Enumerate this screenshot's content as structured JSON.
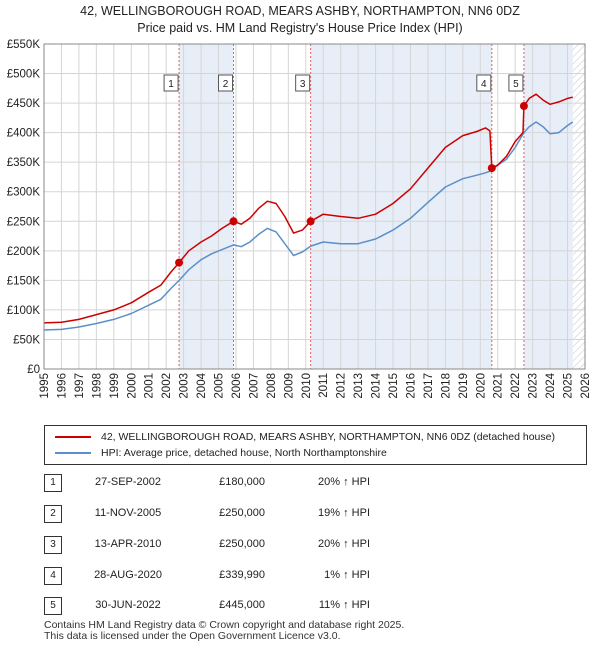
{
  "title_line1": "42, WELLINGBOROUGH ROAD, MEARS ASHBY, NORTHAMPTON, NN6 0DZ",
  "title_line2": "Price paid vs. HM Land Registry's House Price Index (HPI)",
  "colors": {
    "property": "#cc0000",
    "hpi": "#5b8fc9",
    "shade": "#e8eef8",
    "grid": "#d5d5d5"
  },
  "chart_data": {
    "type": "line",
    "xlim": [
      1995,
      2026
    ],
    "ylim": [
      0,
      550000
    ],
    "x_ticks": [
      "1995",
      "1996",
      "1997",
      "1998",
      "1999",
      "2000",
      "2001",
      "2002",
      "2003",
      "2004",
      "2005",
      "2006",
      "2007",
      "2008",
      "2009",
      "2010",
      "2011",
      "2012",
      "2013",
      "2014",
      "2015",
      "2016",
      "2017",
      "2018",
      "2019",
      "2020",
      "2021",
      "2022",
      "2023",
      "2024",
      "2025",
      "2026"
    ],
    "y_ticks": [
      {
        "value": 0,
        "label": "£0"
      },
      {
        "value": 50000,
        "label": "£50K"
      },
      {
        "value": 100000,
        "label": "£100K"
      },
      {
        "value": 150000,
        "label": "£150K"
      },
      {
        "value": 200000,
        "label": "£200K"
      },
      {
        "value": 250000,
        "label": "£250K"
      },
      {
        "value": 300000,
        "label": "£300K"
      },
      {
        "value": 350000,
        "label": "£350K"
      },
      {
        "value": 400000,
        "label": "£400K"
      },
      {
        "value": 450000,
        "label": "£450K"
      },
      {
        "value": 500000,
        "label": "£500K"
      },
      {
        "value": 550000,
        "label": "£550K"
      }
    ],
    "grid": true,
    "hatch_from": 2025.3,
    "shaded_spans": [
      [
        2002.74,
        2005.86
      ],
      [
        2010.28,
        2020.66
      ],
      [
        2022.5,
        2025.3
      ]
    ],
    "series": [
      {
        "name": "42, WELLINGBOROUGH ROAD, MEARS ASHBY, NORTHAMPTON, NN6 0DZ (detached house)",
        "color": "#cc0000",
        "points": [
          [
            1995.0,
            78000
          ],
          [
            1996.0,
            79000
          ],
          [
            1997.0,
            84000
          ],
          [
            1998.0,
            92000
          ],
          [
            1999.0,
            100000
          ],
          [
            2000.0,
            112000
          ],
          [
            2001.0,
            130000
          ],
          [
            2001.7,
            142000
          ],
          [
            2002.3,
            165000
          ],
          [
            2002.74,
            180000
          ],
          [
            2003.3,
            200000
          ],
          [
            2004.0,
            215000
          ],
          [
            2004.6,
            225000
          ],
          [
            2005.2,
            238000
          ],
          [
            2005.86,
            250000
          ],
          [
            2006.3,
            245000
          ],
          [
            2006.8,
            255000
          ],
          [
            2007.3,
            272000
          ],
          [
            2007.8,
            284000
          ],
          [
            2008.3,
            280000
          ],
          [
            2008.8,
            258000
          ],
          [
            2009.3,
            230000
          ],
          [
            2009.8,
            235000
          ],
          [
            2010.28,
            250000
          ],
          [
            2011.0,
            262000
          ],
          [
            2012.0,
            258000
          ],
          [
            2013.0,
            255000
          ],
          [
            2014.0,
            262000
          ],
          [
            2015.0,
            280000
          ],
          [
            2016.0,
            305000
          ],
          [
            2017.0,
            340000
          ],
          [
            2018.0,
            375000
          ],
          [
            2019.0,
            395000
          ],
          [
            2019.8,
            402000
          ],
          [
            2020.3,
            408000
          ],
          [
            2020.55,
            403000
          ],
          [
            2020.66,
            339990
          ],
          [
            2021.0,
            345000
          ],
          [
            2021.5,
            360000
          ],
          [
            2022.0,
            385000
          ],
          [
            2022.45,
            400000
          ],
          [
            2022.5,
            445000
          ],
          [
            2022.8,
            458000
          ],
          [
            2023.2,
            465000
          ],
          [
            2023.6,
            455000
          ],
          [
            2024.0,
            448000
          ],
          [
            2024.5,
            452000
          ],
          [
            2025.0,
            458000
          ],
          [
            2025.3,
            460000
          ]
        ]
      },
      {
        "name": "HPI: Average price, detached house, North Northamptonshire",
        "color": "#5b8fc9",
        "points": [
          [
            1995.0,
            66000
          ],
          [
            1996.0,
            67000
          ],
          [
            1997.0,
            71000
          ],
          [
            1998.0,
            77000
          ],
          [
            1999.0,
            84000
          ],
          [
            2000.0,
            94000
          ],
          [
            2001.0,
            108000
          ],
          [
            2001.7,
            118000
          ],
          [
            2002.3,
            137000
          ],
          [
            2002.74,
            150000
          ],
          [
            2003.3,
            168000
          ],
          [
            2004.0,
            185000
          ],
          [
            2004.6,
            195000
          ],
          [
            2005.2,
            202000
          ],
          [
            2005.86,
            210000
          ],
          [
            2006.3,
            207000
          ],
          [
            2006.8,
            215000
          ],
          [
            2007.3,
            228000
          ],
          [
            2007.8,
            238000
          ],
          [
            2008.3,
            232000
          ],
          [
            2008.8,
            212000
          ],
          [
            2009.3,
            192000
          ],
          [
            2009.8,
            198000
          ],
          [
            2010.28,
            208000
          ],
          [
            2011.0,
            215000
          ],
          [
            2012.0,
            212000
          ],
          [
            2013.0,
            212000
          ],
          [
            2014.0,
            220000
          ],
          [
            2015.0,
            235000
          ],
          [
            2016.0,
            255000
          ],
          [
            2017.0,
            282000
          ],
          [
            2018.0,
            308000
          ],
          [
            2019.0,
            322000
          ],
          [
            2019.8,
            328000
          ],
          [
            2020.3,
            332000
          ],
          [
            2020.66,
            336000
          ],
          [
            2021.0,
            345000
          ],
          [
            2021.5,
            355000
          ],
          [
            2022.0,
            375000
          ],
          [
            2022.5,
            400000
          ],
          [
            2022.8,
            410000
          ],
          [
            2023.2,
            418000
          ],
          [
            2023.6,
            410000
          ],
          [
            2024.0,
            398000
          ],
          [
            2024.5,
            400000
          ],
          [
            2025.0,
            412000
          ],
          [
            2025.3,
            418000
          ]
        ]
      }
    ],
    "sales": [
      {
        "label": "1",
        "x": 2002.74,
        "y": 180000
      },
      {
        "label": "2",
        "x": 2005.86,
        "y": 250000
      },
      {
        "label": "3",
        "x": 2010.28,
        "y": 250000
      },
      {
        "label": "4",
        "x": 2020.66,
        "y": 339990
      },
      {
        "label": "5",
        "x": 2022.5,
        "y": 445000
      }
    ]
  },
  "legend": {
    "property": "42, WELLINGBOROUGH ROAD, MEARS ASHBY, NORTHAMPTON, NN6 0DZ (detached house)",
    "hpi": "HPI: Average price, detached house, North Northamptonshire"
  },
  "transactions": [
    {
      "num": "1",
      "date": "27-SEP-2002",
      "price": "£180,000",
      "hpi": "20% ↑ HPI"
    },
    {
      "num": "2",
      "date": "11-NOV-2005",
      "price": "£250,000",
      "hpi": "19% ↑ HPI"
    },
    {
      "num": "3",
      "date": "13-APR-2010",
      "price": "£250,000",
      "hpi": "20% ↑ HPI"
    },
    {
      "num": "4",
      "date": "28-AUG-2020",
      "price": "£339,990",
      "hpi": "1% ↑ HPI"
    },
    {
      "num": "5",
      "date": "30-JUN-2022",
      "price": "£445,000",
      "hpi": "11% ↑ HPI"
    }
  ],
  "footer_line1": "Contains HM Land Registry data © Crown copyright and database right 2025.",
  "footer_line2": "This data is licensed under the Open Government Licence v3.0."
}
